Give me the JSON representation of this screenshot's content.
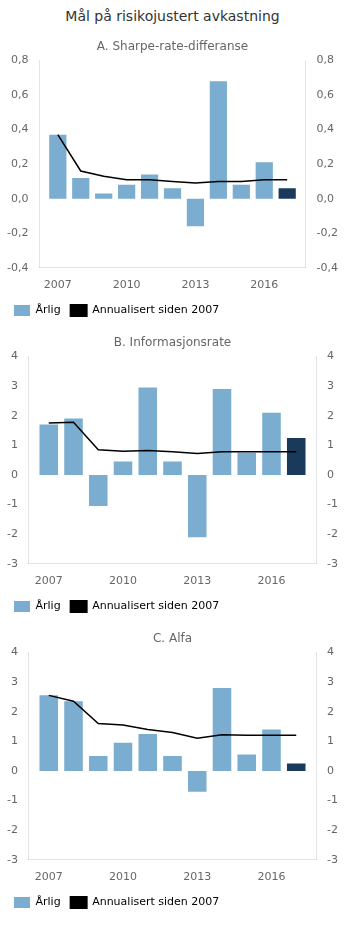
{
  "title": "Mål på risikojustert avkastning",
  "chart_data": [
    {
      "type": "bar",
      "title": "A. Sharpe-rate-differanse",
      "x": [
        2007,
        2008,
        2009,
        2010,
        2011,
        2012,
        2013,
        2014,
        2015,
        2016,
        2017
      ],
      "series": [
        {
          "name": "Årlig",
          "type": "bar",
          "color": "#7aadcf",
          "colors": [
            "#7aadcf",
            "#7aadcf",
            "#7aadcf",
            "#7aadcf",
            "#7aadcf",
            "#7aadcf",
            "#7aadcf",
            "#7aadcf",
            "#7aadcf",
            "#7aadcf",
            "#1a3a5c"
          ],
          "values": [
            0.37,
            0.12,
            0.03,
            0.08,
            0.14,
            0.06,
            -0.16,
            0.68,
            0.08,
            0.21,
            0.06
          ]
        },
        {
          "name": "Annualisert siden 2007",
          "type": "line",
          "color": "#000000",
          "values": [
            0.37,
            0.16,
            0.13,
            0.11,
            0.11,
            0.1,
            0.09,
            0.1,
            0.1,
            0.11,
            0.11
          ]
        }
      ],
      "xlim": [
        2006.2,
        2017.8
      ],
      "xticks": [
        2007,
        2010,
        2013,
        2016
      ],
      "ylim": [
        -0.4,
        0.8
      ],
      "yticks": [
        {
          "value": -0.4,
          "label": "-0,4"
        },
        {
          "value": -0.2,
          "label": "-0,2"
        },
        {
          "value": 0.0,
          "label": "0,0"
        },
        {
          "value": 0.2,
          "label": "0,2"
        },
        {
          "value": 0.4,
          "label": "0,4"
        },
        {
          "value": 0.6,
          "label": "0,6"
        },
        {
          "value": 0.8,
          "label": "0,8"
        }
      ],
      "y2lim": [
        -0.4,
        0.8
      ],
      "y2ticks": [
        {
          "value": -0.4,
          "label": "-0,4"
        },
        {
          "value": -0.2,
          "label": "-0,2"
        },
        {
          "value": 0.0,
          "label": "0,0"
        },
        {
          "value": 0.2,
          "label": "0,2"
        },
        {
          "value": 0.4,
          "label": "0,4"
        },
        {
          "value": 0.6,
          "label": "0,6"
        },
        {
          "value": 0.8,
          "label": "0,8"
        }
      ],
      "grid": false,
      "legend": "lower left"
    },
    {
      "type": "bar",
      "title": "B. Informasjonsrate",
      "x": [
        2007,
        2008,
        2009,
        2010,
        2011,
        2012,
        2013,
        2014,
        2015,
        2016,
        2017
      ],
      "series": [
        {
          "name": "Årlig",
          "type": "bar",
          "color": "#7aadcf",
          "colors": [
            "#7aadcf",
            "#7aadcf",
            "#7aadcf",
            "#7aadcf",
            "#7aadcf",
            "#7aadcf",
            "#7aadcf",
            "#7aadcf",
            "#7aadcf",
            "#7aadcf",
            "#1a3a5c"
          ],
          "values": [
            1.7,
            1.9,
            -1.05,
            0.45,
            2.95,
            0.45,
            -2.1,
            2.9,
            0.75,
            2.1,
            1.25
          ]
        },
        {
          "name": "Annualisert siden 2007",
          "type": "line",
          "color": "#000000",
          "values": [
            1.75,
            1.78,
            0.85,
            0.8,
            0.82,
            0.78,
            0.72,
            0.78,
            0.78,
            0.78,
            0.78
          ]
        }
      ],
      "xlim": [
        2006.2,
        2017.8
      ],
      "xticks": [
        2007,
        2010,
        2013,
        2016
      ],
      "ylim": [
        -3,
        4
      ],
      "yticks": [
        -3,
        -2,
        -1,
        0,
        1,
        2,
        3,
        4
      ],
      "y2lim": [
        -3,
        4
      ],
      "y2ticks": [
        -3,
        -2,
        -1,
        0,
        1,
        2,
        3,
        4
      ],
      "grid": false,
      "legend": "lower left"
    },
    {
      "type": "bar",
      "title": "C. Alfa",
      "x": [
        2007,
        2008,
        2009,
        2010,
        2011,
        2012,
        2013,
        2014,
        2015,
        2016,
        2017
      ],
      "series": [
        {
          "name": "Årlig",
          "type": "bar",
          "color": "#7aadcf",
          "colors": [
            "#7aadcf",
            "#7aadcf",
            "#7aadcf",
            "#7aadcf",
            "#7aadcf",
            "#7aadcf",
            "#7aadcf",
            "#7aadcf",
            "#7aadcf",
            "#7aadcf",
            "#1a3a5c"
          ],
          "values": [
            2.55,
            2.35,
            0.5,
            0.95,
            1.25,
            0.5,
            -0.7,
            2.8,
            0.55,
            1.4,
            0.25
          ]
        },
        {
          "name": "Annualisert siden 2007",
          "type": "line",
          "color": "#000000",
          "values": [
            2.55,
            2.35,
            1.6,
            1.55,
            1.4,
            1.3,
            1.1,
            1.22,
            1.2,
            1.2,
            1.2
          ]
        }
      ],
      "xlim": [
        2006.2,
        2017.8
      ],
      "xticks": [
        2007,
        2010,
        2013,
        2016
      ],
      "ylim": [
        -3,
        4
      ],
      "yticks": [
        -3,
        -2,
        -1,
        0,
        1,
        2,
        3,
        4
      ],
      "y2lim": [
        -3,
        4
      ],
      "y2ticks": [
        -3,
        -2,
        -1,
        0,
        1,
        2,
        3,
        4
      ],
      "grid": false,
      "legend": "lower left"
    }
  ]
}
